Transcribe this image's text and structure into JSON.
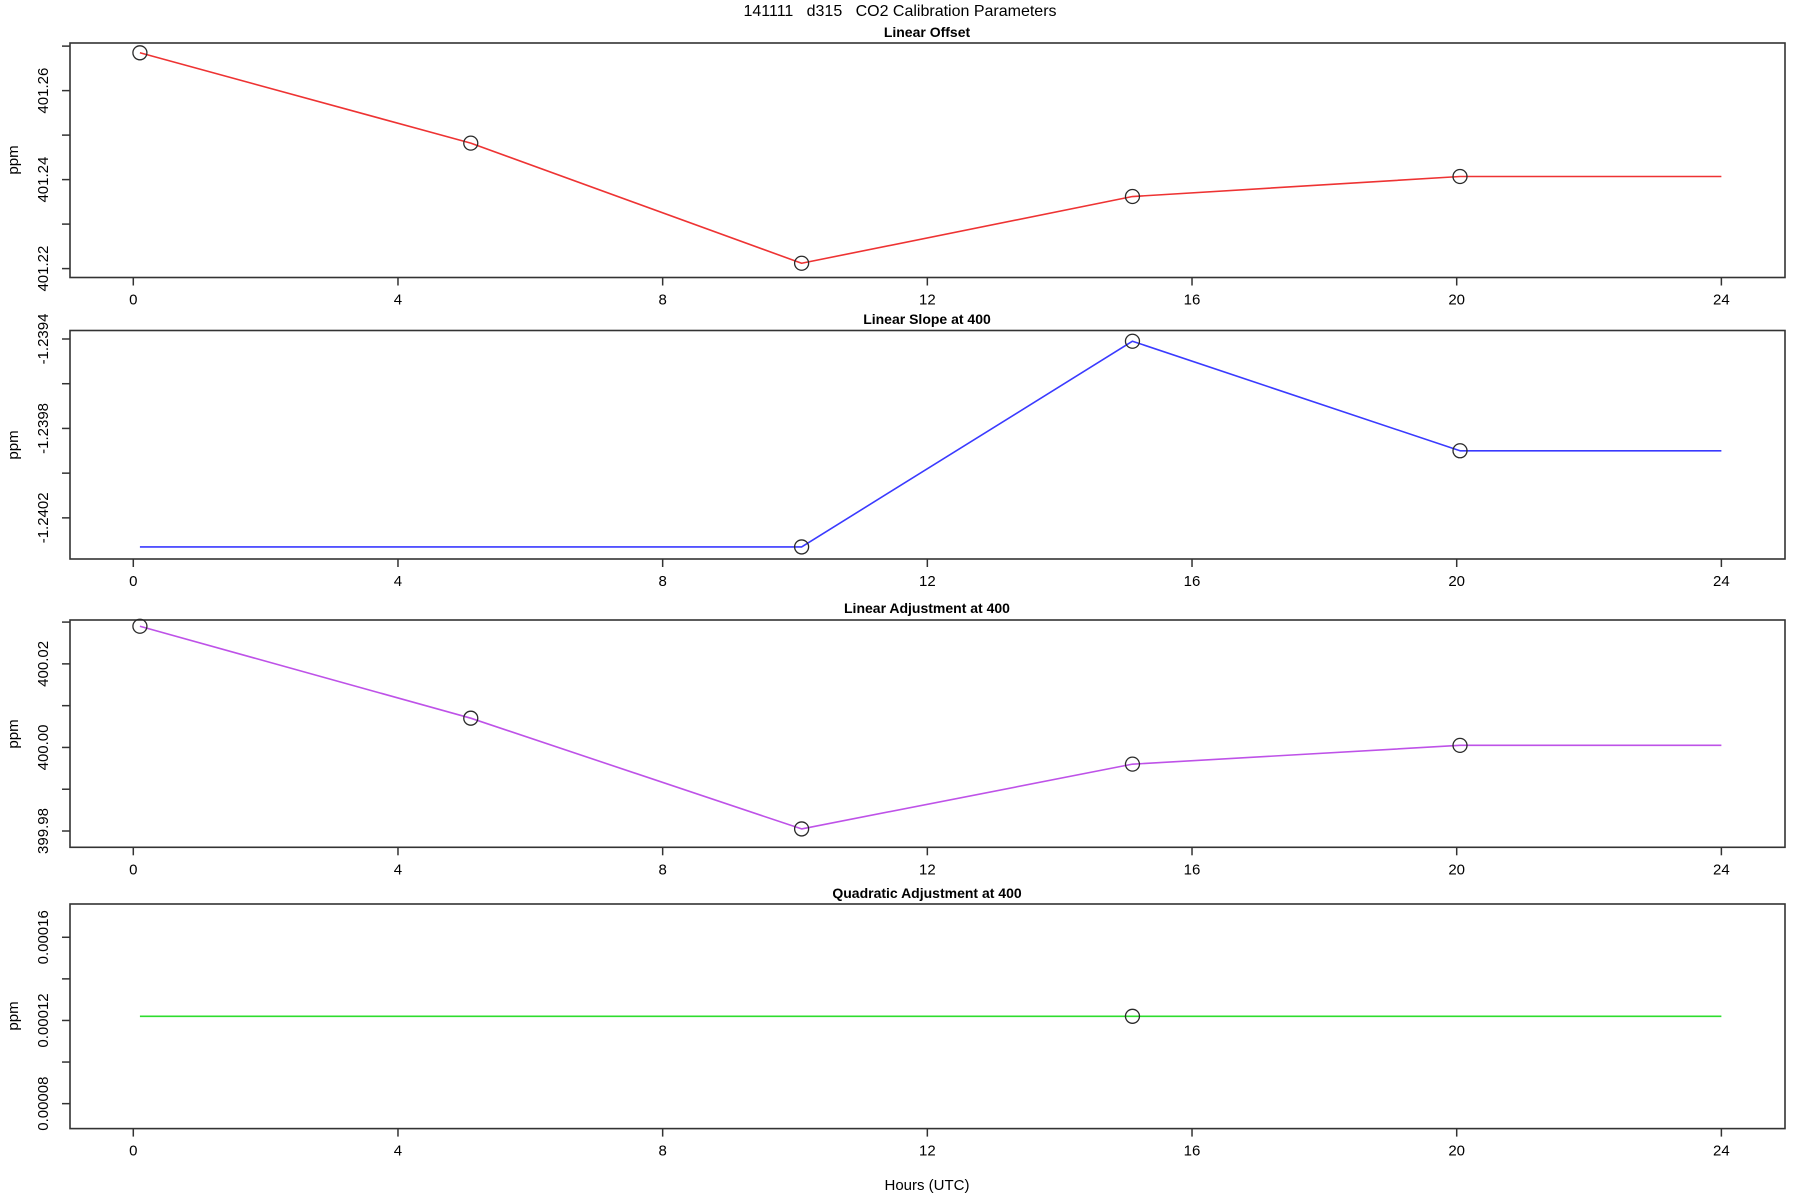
{
  "title": "141111   d315   CO2 Calibration Parameters",
  "x_axis_label": "Hours (UTC)",
  "x_ticks": [
    0,
    4,
    8,
    12,
    16,
    20,
    24
  ],
  "chart_data": [
    {
      "type": "line",
      "title": "Linear Offset",
      "ylabel": "ppm",
      "color": "#ee3333",
      "x": [
        0.1,
        5.1,
        10.1,
        15.1,
        20.05,
        24
      ],
      "y": [
        401.2685,
        401.2482,
        401.2212,
        401.2362,
        401.2407,
        401.2407
      ],
      "markers": [
        [
          0.1,
          401.2685
        ],
        [
          5.1,
          401.2482
        ],
        [
          10.1,
          401.2212
        ],
        [
          15.1,
          401.2362
        ],
        [
          20.05,
          401.2407
        ]
      ],
      "ylim": [
        401.218,
        401.2707
      ],
      "yticks": [
        401.22,
        401.23,
        401.24,
        401.25,
        401.26,
        401.27
      ],
      "ytick_labels": [
        "401.22",
        "",
        "401.24",
        "",
        "401.26",
        ""
      ],
      "xlim": [
        -0.95,
        24.96
      ],
      "grid": false,
      "legend": "none"
    },
    {
      "type": "line",
      "title": "Linear Slope at 400",
      "ylabel": "ppm",
      "color": "#3a3aff",
      "x": [
        0.1,
        10.1,
        15.1,
        20.05,
        24
      ],
      "y": [
        -1.24033,
        -1.24033,
        -1.23941,
        -1.2399,
        -1.2399
      ],
      "markers": [
        [
          10.1,
          -1.24033
        ],
        [
          15.1,
          -1.23941
        ],
        [
          20.05,
          -1.2399
        ]
      ],
      "ylim": [
        -1.240384,
        -1.239362
      ],
      "yticks": [
        -1.2402,
        -1.24,
        -1.2398,
        -1.2396,
        -1.2394
      ],
      "ytick_labels": [
        "-1.2402",
        "",
        "-1.2398",
        "",
        "-1.2394"
      ],
      "xlim": [
        -0.95,
        24.96
      ],
      "grid": false,
      "legend": "none"
    },
    {
      "type": "line",
      "title": "Linear Adjustment at 400",
      "ylabel": "ppm",
      "color": "#be52e8",
      "x": [
        0.1,
        5.1,
        10.1,
        15.1,
        20.05,
        24
      ],
      "y": [
        400.029,
        400.007,
        399.9805,
        399.996,
        400.0005,
        400.0005
      ],
      "markers": [
        [
          0.1,
          400.029
        ],
        [
          5.1,
          400.007
        ],
        [
          10.1,
          399.9805
        ],
        [
          15.1,
          399.996
        ],
        [
          20.05,
          400.0005
        ]
      ],
      "ylim": [
        399.9761,
        400.0305
      ],
      "yticks": [
        399.98,
        399.99,
        400.0,
        400.01,
        400.02,
        400.03
      ],
      "ytick_labels": [
        "399.98",
        "",
        "400.00",
        "",
        "400.02",
        ""
      ],
      "xlim": [
        -0.95,
        24.96
      ],
      "grid": false,
      "legend": "none"
    },
    {
      "type": "line",
      "title": "Quadratic Adjustment at 400",
      "ylabel": "ppm",
      "color": "#2edd2e",
      "x": [
        0.1,
        15.1,
        24
      ],
      "y": [
        0.000122,
        0.000122,
        0.000122
      ],
      "markers": [
        [
          15.1,
          0.000122
        ]
      ],
      "ylim": [
        6.8e-05,
        0.000176
      ],
      "yticks": [
        8e-05,
        0.0001,
        0.00012,
        0.00014,
        0.00016
      ],
      "ytick_labels": [
        "0.00008",
        "",
        "0.00012",
        "",
        "0.00016"
      ],
      "xlim": [
        -0.95,
        24.96
      ],
      "grid": false,
      "legend": "none"
    }
  ]
}
